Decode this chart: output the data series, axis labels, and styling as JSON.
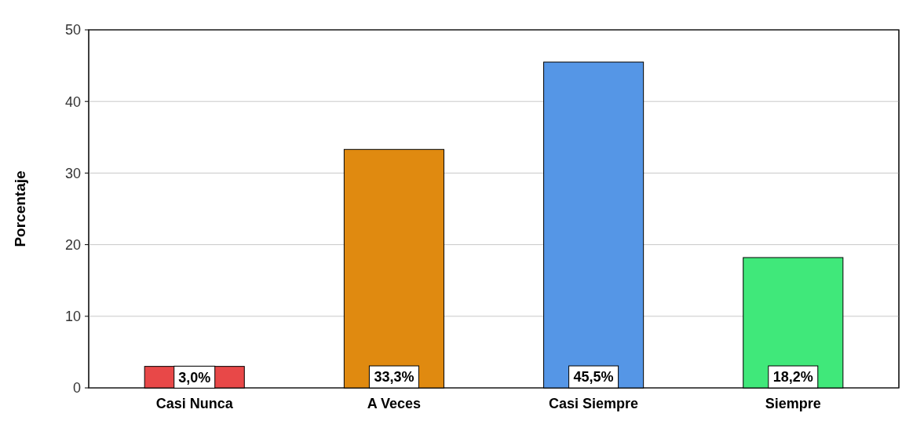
{
  "chart_data": {
    "type": "bar",
    "ylabel": "Porcentaje",
    "categories": [
      "Casi Nunca",
      "A Veces",
      "Casi Siempre",
      "Siempre"
    ],
    "values": [
      3.0,
      33.3,
      45.5,
      18.2
    ],
    "colors": [
      "#e84848",
      "#e08a10",
      "#5596e6",
      "#40e87a"
    ],
    "value_labels": [
      "3,0%",
      "33,3%",
      "45,5%",
      "18,2%"
    ],
    "ylim": [
      0,
      50
    ],
    "yticks": [
      0,
      10,
      20,
      30,
      40,
      50
    ],
    "grid": "y"
  }
}
